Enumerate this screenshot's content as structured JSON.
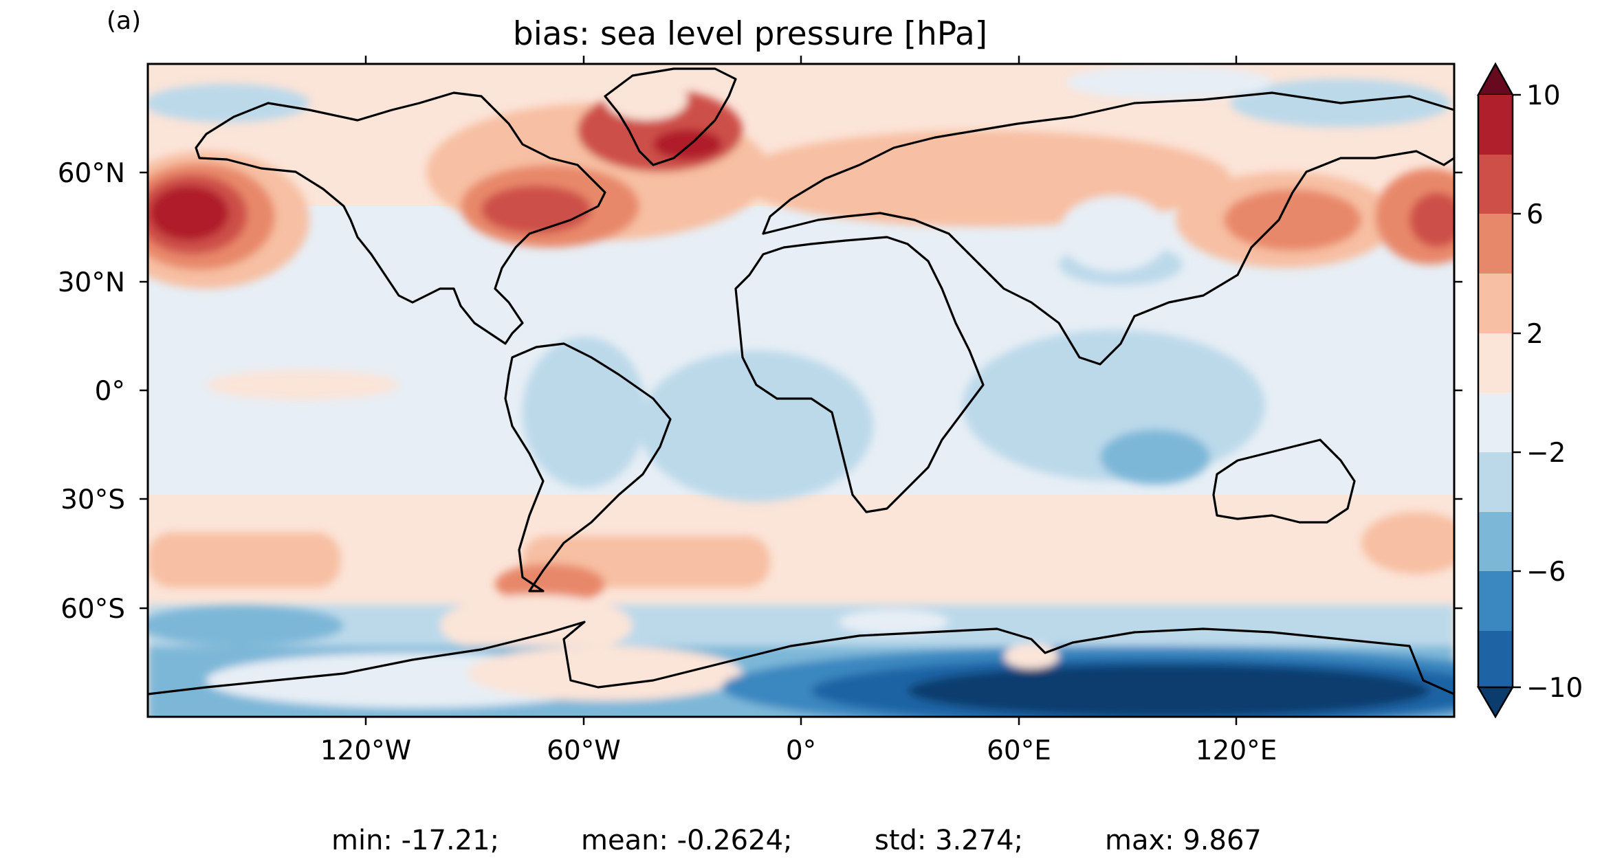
{
  "panel_label": "(a)",
  "title": "bias: sea level pressure [hPa]",
  "map": {
    "projection": "equirectangular",
    "lon_range": [
      -180,
      180
    ],
    "lat_range": [
      -90,
      90
    ],
    "lon_ticks": [
      "120°W",
      "60°W",
      "0°",
      "60°E",
      "120°E"
    ],
    "lat_ticks": [
      "60°N",
      "30°N",
      "0°",
      "30°S",
      "60°S"
    ],
    "colormap": "RdBu_r",
    "colorbar": {
      "levels": [
        -10,
        -8,
        -6,
        -4,
        -2,
        0,
        2,
        4,
        6,
        8,
        10
      ],
      "tick_labels": [
        "10",
        "6",
        "2",
        "−2",
        "−6",
        "−10"
      ],
      "colors": [
        "#0b3c6e",
        "#1e63a4",
        "#3b87c0",
        "#7db7d8",
        "#bcd9ea",
        "#e7eef5",
        "#fbe4d8",
        "#f7bfa3",
        "#e8886a",
        "#cd4f48",
        "#b01f2c",
        "#680a1f"
      ],
      "extend": "both"
    },
    "features": [
      {
        "name": "North Pacific high bias",
        "value": 8
      },
      {
        "name": "North Atlantic / Greenland high bias",
        "value": 6
      },
      {
        "name": "Antarctica low bias",
        "value": -12
      },
      {
        "name": "Southern Ocean low bias",
        "value": -4
      }
    ]
  },
  "stats": {
    "min": "min: -17.21;",
    "mean": "mean: -0.2624;",
    "std": "std: 3.274;",
    "max": "max: 9.867"
  }
}
